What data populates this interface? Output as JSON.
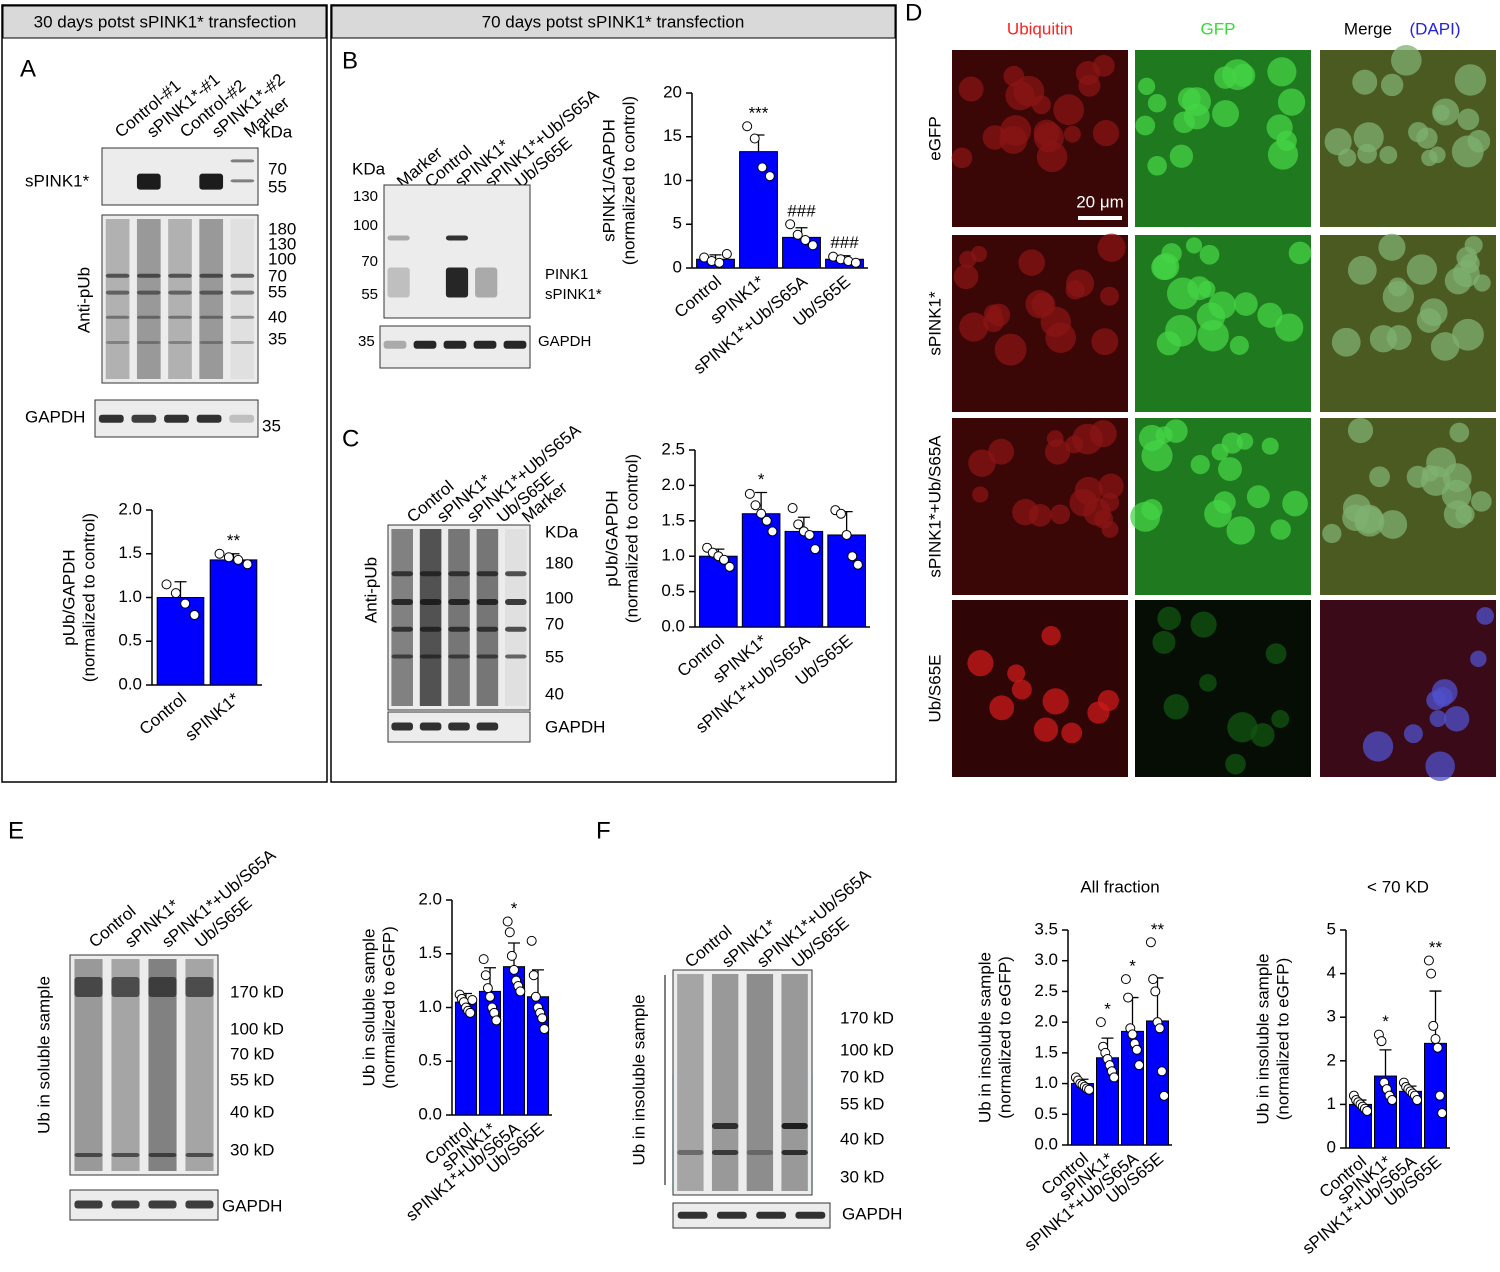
{
  "panel_a": {
    "header": "30 days potst sPINK1* transfection",
    "letter": "A",
    "lanes": [
      "Control-#1",
      "sPINK1*-#1",
      "Control-#2",
      "sPINK1*-#2",
      "Marker"
    ],
    "unit": "kDa",
    "rows": [
      "sPINK1*",
      "Anti-pUb",
      "GAPDH"
    ],
    "markers_top": [
      "70",
      "55"
    ],
    "markers_mid": [
      "180",
      "130",
      "100",
      "70",
      "55",
      "40",
      "35"
    ],
    "markers_bottom": [
      "35"
    ]
  },
  "panel_b": {
    "header": "70 days potst sPINK1* transfection",
    "letter": "B",
    "unit": "KDa",
    "lanes": [
      "Marker",
      "Control",
      "sPINK1*",
      "sPINK1*+Ub/S65A",
      "Ub/S65E"
    ],
    "markers": [
      "130",
      "100",
      "70",
      "55"
    ],
    "gapdh_marker": "35",
    "band_labels": [
      "PINK1",
      "sPINK1*"
    ],
    "loading": "GAPDH"
  },
  "panel_c": {
    "letter": "C",
    "lanes": [
      "Control",
      "sPINK1*",
      "sPINK1*+Ub/S65A",
      "Ub/S65E",
      "Marker"
    ],
    "unit": "KDa",
    "markers": [
      "180",
      "100",
      "70",
      "55",
      "40"
    ],
    "row": "Anti-pUb",
    "loading": "GAPDH"
  },
  "panel_d": {
    "letter": "D",
    "columns": [
      "Ubiquitin",
      "GFP",
      "Merge"
    ],
    "dapi": "(DAPI)",
    "rows": [
      "eGFP",
      "sPINK1*",
      "sPINK1*+Ub/S65A",
      "Ub/S65E"
    ],
    "scale": "20 μm"
  },
  "panel_e": {
    "letter": "E",
    "lanes": [
      "Control",
      "sPINK1*",
      "sPINK1*+Ub/S65A",
      "Ub/S65E"
    ],
    "markers": [
      "170 kD",
      "100 kD",
      "70 kD",
      "55 kD",
      "40 kD",
      "30 kD"
    ],
    "row": "Ub in soluble sample",
    "loading": "GAPDH"
  },
  "panel_f": {
    "letter": "F",
    "lanes": [
      "Control",
      "sPINK1*",
      "sPINK1*+Ub/S65A",
      "Ub/S65E"
    ],
    "markers": [
      "170 kD",
      "100 kD",
      "70 kD",
      "55 kD",
      "40 kD",
      "30 kD"
    ],
    "row": "Ub in insoluble sample",
    "loading": "GAPDH"
  },
  "chart_data": [
    {
      "type": "bar",
      "ylabel": [
        "pUb/GAPDH",
        "(normalized to control)"
      ],
      "color": "#0000ff",
      "categories": [
        "Control",
        "sPINK1*"
      ],
      "values": [
        1.0,
        1.43
      ],
      "errors": [
        0.18,
        0.07
      ],
      "points": [
        [
          1.15,
          1.05,
          0.93,
          0.8
        ],
        [
          1.5,
          1.46,
          1.43,
          1.38
        ]
      ],
      "significance": [
        null,
        "**"
      ],
      "ylim": [
        0,
        2
      ],
      "yticks": [
        {
          "value": 0,
          "label": "0.0"
        },
        0.5,
        {
          "value": 1,
          "label": "1.0"
        },
        1.5,
        {
          "value": 2,
          "label": "2.0"
        }
      ]
    },
    {
      "type": "bar",
      "ylabel": [
        "sPINK1/GAPDH",
        "(normalized to control)"
      ],
      "color": "#0000ff",
      "categories": [
        "Control",
        "sPINK1*",
        "sPINK1*+Ub/S65A",
        "Ub/S65E"
      ],
      "values": [
        1.0,
        13.3,
        3.5,
        1.0
      ],
      "errors": [
        0.5,
        1.9,
        1.1,
        0.4
      ],
      "points": [
        [
          1.2,
          0.8,
          0.6,
          1.6
        ],
        [
          16.2,
          14.8,
          11.5,
          10.5
        ],
        [
          5.0,
          3.8,
          3.2,
          2.6
        ],
        [
          1.3,
          1.0,
          0.8,
          0.6
        ]
      ],
      "significance": [
        null,
        "***",
        "###",
        "###"
      ],
      "ylim": [
        0,
        20
      ],
      "yticks": [
        0,
        5,
        10,
        15,
        20
      ]
    },
    {
      "type": "bar",
      "ylabel": [
        "pUb/GAPDH",
        "(normalized to control)"
      ],
      "color": "#0000ff",
      "categories": [
        "Control",
        "sPINK1*",
        "sPINK1*+Ub/S65A",
        "Ub/S65E"
      ],
      "values": [
        1.0,
        1.6,
        1.35,
        1.3
      ],
      "errors": [
        0.1,
        0.3,
        0.2,
        0.33
      ],
      "points": [
        [
          1.12,
          1.05,
          1.0,
          0.95,
          0.85
        ],
        [
          1.88,
          1.72,
          1.6,
          1.5,
          1.35
        ],
        [
          1.68,
          1.45,
          1.35,
          1.3,
          1.1
        ],
        [
          1.65,
          1.6,
          1.3,
          1.0,
          0.88
        ]
      ],
      "significance": [
        null,
        "*",
        null,
        null
      ],
      "ylim": [
        0,
        2.5
      ],
      "yticks": [
        {
          "value": 0,
          "label": "0.0"
        },
        0.5,
        {
          "value": 1,
          "label": "1.0"
        },
        1.5,
        {
          "value": 2,
          "label": "2.0"
        },
        2.5
      ]
    },
    {
      "type": "bar",
      "ylabel": [
        "Ub in soluble sample",
        "(normalized to eGFP)"
      ],
      "color": "#0000ff",
      "categories": [
        "Control",
        "sPINK1*",
        "sPINK1*+Ub/S65A",
        "Ub/S65E"
      ],
      "values": [
        1.05,
        1.15,
        1.38,
        1.1
      ],
      "errors": [
        0.08,
        0.22,
        0.22,
        0.25
      ],
      "points": [
        [
          1.12,
          1.08,
          1.05,
          1.0,
          0.97,
          0.95,
          1.07
        ],
        [
          1.45,
          1.3,
          1.18,
          1.1,
          1.0,
          0.95,
          0.88
        ],
        [
          1.8,
          1.7,
          1.48,
          1.35,
          1.25,
          1.2,
          1.15
        ],
        [
          1.62,
          1.3,
          1.1,
          1.0,
          0.95,
          0.9,
          0.8
        ]
      ],
      "significance": [
        null,
        null,
        "*",
        null
      ],
      "ylim": [
        0,
        2
      ],
      "yticks": [
        {
          "value": 0,
          "label": "0.0"
        },
        0.5,
        {
          "value": 1,
          "label": "1.0"
        },
        1.5,
        {
          "value": 2,
          "label": "2.0"
        }
      ]
    },
    {
      "type": "bar",
      "title": "All fraction",
      "ylabel": [
        "Ub in insoluble sample",
        "(normalized to eGFP)"
      ],
      "color": "#0000ff",
      "categories": [
        "Control",
        "sPINK1*",
        "sPINK1*+Ub/S65A",
        "Ub/S65E"
      ],
      "values": [
        1.0,
        1.42,
        1.85,
        2.02
      ],
      "errors": [
        0.07,
        0.32,
        0.55,
        0.7
      ],
      "points": [
        [
          1.1,
          1.05,
          1.0,
          0.98,
          0.95,
          0.92,
          0.9
        ],
        [
          2.0,
          1.6,
          1.5,
          1.4,
          1.3,
          1.2,
          1.1
        ],
        [
          2.7,
          2.4,
          1.9,
          1.8,
          1.65,
          1.55,
          1.3
        ],
        [
          3.3,
          2.7,
          2.5,
          2.0,
          1.9,
          1.2,
          0.8
        ]
      ],
      "significance": [
        null,
        "*",
        "*",
        "**"
      ],
      "ylim": [
        0,
        3.5
      ],
      "yticks": [
        {
          "value": 0,
          "label": "0.0"
        },
        0.5,
        {
          "value": 1,
          "label": "1.0"
        },
        1.5,
        {
          "value": 2,
          "label": "2.0"
        },
        2.5,
        {
          "value": 3,
          "label": "3.0"
        },
        3.5
      ]
    },
    {
      "type": "bar",
      "title": "< 70 KD",
      "ylabel": [
        "Ub in insoluble sample",
        "(normalized to eGFP)"
      ],
      "color": "#0000ff",
      "categories": [
        "Control",
        "sPINK1*",
        "sPINK1*+Ub/S65A",
        "Ub/S65E"
      ],
      "values": [
        1.0,
        1.65,
        1.3,
        2.4
      ],
      "errors": [
        0.1,
        0.6,
        0.12,
        1.2
      ],
      "points": [
        [
          1.2,
          1.1,
          1.05,
          1.0,
          0.95,
          0.9,
          0.85
        ],
        [
          2.6,
          2.45,
          1.5,
          1.35,
          1.2,
          1.1
        ],
        [
          1.5,
          1.4,
          1.35,
          1.3,
          1.25,
          1.2,
          1.1
        ],
        [
          4.3,
          4.0,
          2.8,
          2.5,
          2.3,
          1.2,
          0.8
        ]
      ],
      "significance": [
        null,
        "*",
        null,
        "**"
      ],
      "ylim": [
        0,
        5
      ],
      "yticks": [
        0,
        1,
        2,
        3,
        4,
        5
      ]
    }
  ]
}
